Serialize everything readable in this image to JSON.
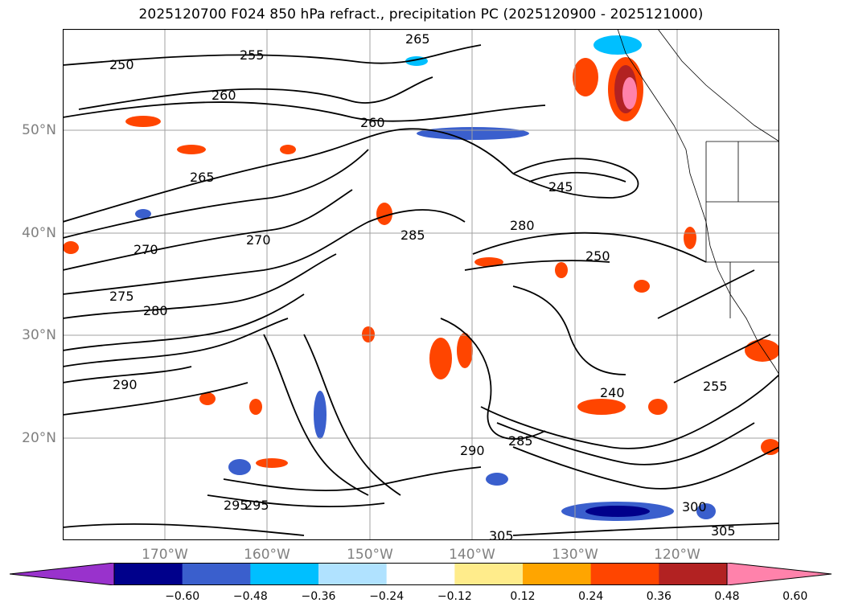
{
  "title": "2025120700 F024 850 hPa refract., precipitation PC (2025120900 - 2025121000)",
  "lat_labels": [
    "50°N",
    "40°N",
    "30°N",
    "20°N"
  ],
  "lon_labels": [
    "170°W",
    "160°W",
    "150°W",
    "140°W",
    "130°W",
    "120°W"
  ],
  "contour_labels": [
    "250",
    "255",
    "260",
    "265",
    "270",
    "260",
    "265",
    "270",
    "275",
    "280",
    "285",
    "290",
    "295",
    "300",
    "305",
    "245",
    "240",
    "250",
    "255",
    "285",
    "280",
    "290",
    "295",
    "305"
  ],
  "colorbar": {
    "ticks": [
      "−0.60",
      "−0.48",
      "−0.36",
      "−0.24",
      "−0.12",
      "0.12",
      "0.24",
      "0.36",
      "0.48",
      "0.60"
    ],
    "colors": [
      "#9932cc",
      "#00008b",
      "#3a5fcd",
      "#00bfff",
      "#b0e2ff",
      "#ffffff",
      "#ffec8b",
      "#ffa500",
      "#ff4500",
      "#b22222",
      "#ff82ab"
    ]
  }
}
